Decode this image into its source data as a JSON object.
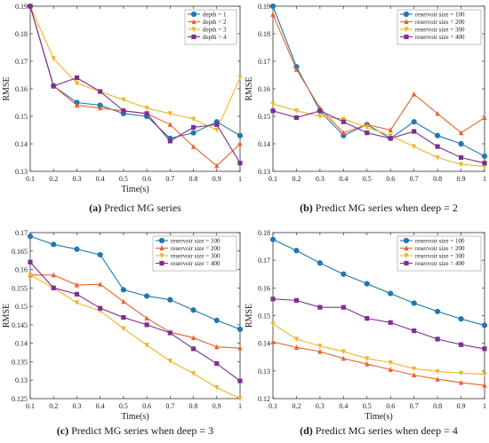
{
  "chart_data": [
    {
      "id": "a",
      "type": "line",
      "caption_label": "(a)",
      "caption_text": "Predict MG series",
      "xlabel": "Time(s)",
      "ylabel": "RMSE",
      "xlim": [
        0.1,
        1
      ],
      "ylim": [
        0.13,
        0.19
      ],
      "x_ticks": [
        "0.1",
        "0.2",
        "0.3",
        "0.4",
        "0.5",
        "0.6",
        "0.7",
        "0.8",
        "0.9",
        "1"
      ],
      "y_ticks": [
        "0.13",
        "0.14",
        "0.15",
        "0.16",
        "0.17",
        "0.18",
        "0.19"
      ],
      "legend_position": "top-right",
      "x": [
        0.1,
        0.2,
        0.3,
        0.4,
        0.5,
        0.6,
        0.7,
        0.8,
        0.9,
        1
      ],
      "series": [
        {
          "name": "depth = 1",
          "color": "#1f77b4",
          "marker": "circle",
          "values": [
            0.19,
            0.161,
            0.155,
            0.154,
            0.151,
            0.15,
            0.142,
            0.144,
            0.148,
            0.143
          ]
        },
        {
          "name": "depth = 2",
          "color": "#e8622c",
          "marker": "triangle",
          "values": [
            0.19,
            0.161,
            0.154,
            0.153,
            0.152,
            0.151,
            0.147,
            0.139,
            0.132,
            0.14
          ]
        },
        {
          "name": "depth = 3",
          "color": "#f0b429",
          "marker": "triangle-down",
          "values": [
            0.19,
            0.171,
            0.162,
            0.159,
            0.156,
            0.153,
            0.151,
            0.149,
            0.145,
            0.164
          ]
        },
        {
          "name": "depth = 4",
          "color": "#7e2f8e",
          "marker": "square",
          "values": [
            0.19,
            0.161,
            0.164,
            0.159,
            0.152,
            0.151,
            0.141,
            0.146,
            0.147,
            0.133
          ]
        }
      ]
    },
    {
      "id": "b",
      "type": "line",
      "caption_label": "(b)",
      "caption_text": "Predict MG series when deep = 2",
      "xlabel": "",
      "ylabel": "RMSE",
      "xlim": [
        0.1,
        1
      ],
      "ylim": [
        0.13,
        0.19
      ],
      "x_ticks": [
        "0.1",
        "0.2",
        "0.3",
        "0.4",
        "0.5",
        "0.6",
        "0.7",
        "0.8",
        "0.9",
        "1"
      ],
      "y_ticks": [
        "0.13",
        "0.14",
        "0.15",
        "0.16",
        "0.17",
        "0.18",
        "0.19"
      ],
      "legend_position": "top-right",
      "x": [
        0.1,
        0.2,
        0.3,
        0.4,
        0.5,
        0.6,
        0.7,
        0.8,
        0.9,
        1
      ],
      "series": [
        {
          "name": "reservoir size = 100",
          "color": "#1f77b4",
          "marker": "circle",
          "values": [
            0.19,
            0.168,
            0.152,
            0.143,
            0.147,
            0.142,
            0.148,
            0.143,
            0.14,
            0.1355
          ]
        },
        {
          "name": "reservoir size = 200",
          "color": "#e8622c",
          "marker": "triangle",
          "values": [
            0.187,
            0.167,
            0.153,
            0.144,
            0.147,
            0.145,
            0.158,
            0.151,
            0.144,
            0.1495
          ]
        },
        {
          "name": "reservoir size = 300",
          "color": "#f0b429",
          "marker": "triangle-down",
          "values": [
            0.1545,
            0.152,
            0.15,
            0.149,
            0.146,
            0.143,
            0.139,
            0.135,
            0.1325,
            0.1318
          ]
        },
        {
          "name": "reservoir size = 400",
          "color": "#7e2f8e",
          "marker": "square",
          "values": [
            0.152,
            0.1495,
            0.152,
            0.148,
            0.144,
            0.142,
            0.1445,
            0.139,
            0.135,
            0.133
          ]
        }
      ]
    },
    {
      "id": "c",
      "type": "line",
      "caption_label": "(c)",
      "caption_text": "Predict MG series when deep = 3",
      "xlabel": "Time(s)",
      "ylabel": "RMSE",
      "xlim": [
        0.1,
        1
      ],
      "ylim": [
        0.125,
        0.17
      ],
      "x_ticks": [
        "0.1",
        "0.2",
        "0.3",
        "0.4",
        "0.5",
        "0.6",
        "0.7",
        "0.8",
        "0.9",
        "1"
      ],
      "y_ticks": [
        "0.125",
        "0.13",
        "0.135",
        "0.14",
        "0.145",
        "0.15",
        "0.155",
        "0.16",
        "0.165",
        "0.17"
      ],
      "legend_position": "top-right",
      "x": [
        0.1,
        0.2,
        0.3,
        0.4,
        0.5,
        0.6,
        0.7,
        0.8,
        0.9,
        1
      ],
      "series": [
        {
          "name": "reservoir size = 100",
          "color": "#1f77b4",
          "marker": "circle",
          "values": [
            0.169,
            0.1668,
            0.1655,
            0.164,
            0.1545,
            0.1528,
            0.1518,
            0.149,
            0.1462,
            0.1438
          ]
        },
        {
          "name": "reservoir size = 200",
          "color": "#e8622c",
          "marker": "triangle",
          "values": [
            0.1585,
            0.1585,
            0.1558,
            0.156,
            0.1513,
            0.1468,
            0.143,
            0.1415,
            0.139,
            0.1387
          ]
        },
        {
          "name": "reservoir size = 300",
          "color": "#f0b429",
          "marker": "triangle-down",
          "values": [
            0.1585,
            0.155,
            0.151,
            0.1488,
            0.144,
            0.1395,
            0.1352,
            0.1318,
            0.128,
            0.125
          ]
        },
        {
          "name": "reservoir size = 400",
          "color": "#7e2f8e",
          "marker": "square",
          "values": [
            0.162,
            0.155,
            0.1533,
            0.1495,
            0.147,
            0.145,
            0.1428,
            0.1385,
            0.1345,
            0.1298
          ]
        }
      ]
    },
    {
      "id": "d",
      "type": "line",
      "caption_label": "(d)",
      "caption_text": "Predict MG series when deep = 4",
      "xlabel": "Time(s)",
      "ylabel": "RMSE",
      "xlim": [
        0.1,
        1
      ],
      "ylim": [
        0.12,
        0.18
      ],
      "x_ticks": [
        "0.1",
        "0.2",
        "0.3",
        "0.4",
        "0.5",
        "0.6",
        "0.7",
        "0.8",
        "0.9",
        "1"
      ],
      "y_ticks": [
        "0.12",
        "0.13",
        "0.14",
        "0.15",
        "0.16",
        "0.17",
        "0.18"
      ],
      "legend_position": "top-right",
      "x": [
        0.1,
        0.2,
        0.3,
        0.4,
        0.5,
        0.6,
        0.7,
        0.8,
        0.9,
        1
      ],
      "series": [
        {
          "name": "reservoir size = 100",
          "color": "#1f77b4",
          "marker": "circle",
          "values": [
            0.1775,
            0.1735,
            0.169,
            0.165,
            0.1615,
            0.158,
            0.1545,
            0.1515,
            0.1488,
            0.1465
          ]
        },
        {
          "name": "reservoir size = 200",
          "color": "#e8622c",
          "marker": "triangle",
          "values": [
            0.1405,
            0.1385,
            0.137,
            0.1345,
            0.1325,
            0.1305,
            0.1285,
            0.127,
            0.1258,
            0.1248
          ]
        },
        {
          "name": "reservoir size = 300",
          "color": "#f0b429",
          "marker": "triangle-down",
          "values": [
            0.147,
            0.1415,
            0.139,
            0.137,
            0.1345,
            0.133,
            0.1308,
            0.1298,
            0.1292,
            0.1288
          ]
        },
        {
          "name": "reservoir size = 400",
          "color": "#7e2f8e",
          "marker": "square",
          "values": [
            0.156,
            0.1555,
            0.153,
            0.153,
            0.149,
            0.1475,
            0.1445,
            0.1415,
            0.1395,
            0.138
          ]
        }
      ]
    }
  ]
}
